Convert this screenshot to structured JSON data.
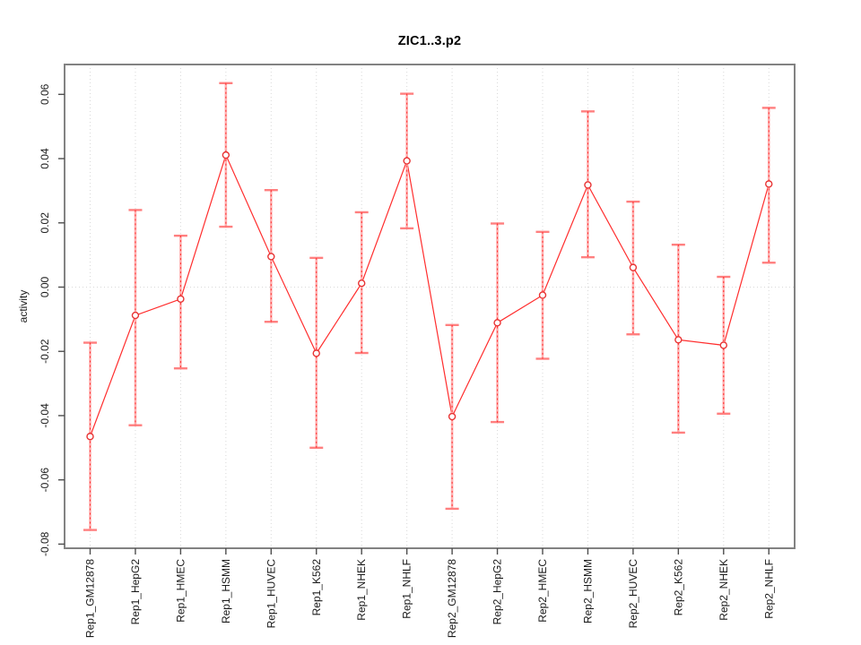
{
  "chart_data": {
    "type": "line",
    "title": "ZIC1..3.p2",
    "xlabel": "",
    "ylabel": "activity",
    "categories": [
      "Rep1_GM12878",
      "Rep1_HepG2",
      "Rep1_HMEC",
      "Rep1_HSMM",
      "Rep1_HUVEC",
      "Rep1_K562",
      "Rep1_NHEK",
      "Rep1_NHLF",
      "Rep2_GM12878",
      "Rep2_HepG2",
      "Rep2_HMEC",
      "Rep2_HSMM",
      "Rep2_HUVEC",
      "Rep2_K562",
      "Rep2_NHEK",
      "Rep2_NHLF"
    ],
    "series": [
      {
        "name": "activity",
        "values": [
          -0.0465,
          -0.0088,
          -0.0037,
          0.0411,
          0.0095,
          -0.0206,
          0.0012,
          0.0393,
          -0.0403,
          -0.0111,
          -0.0025,
          0.0318,
          0.0061,
          -0.0164,
          -0.0181,
          0.0321
        ],
        "upper": [
          -0.0173,
          0.024,
          0.016,
          0.0635,
          0.0302,
          0.0091,
          0.0233,
          0.0602,
          -0.0118,
          0.0198,
          0.0172,
          0.0547,
          0.0266,
          0.0132,
          0.0032,
          0.0558
        ],
        "lower": [
          -0.0756,
          -0.043,
          -0.0253,
          0.0188,
          -0.0108,
          -0.05,
          -0.0205,
          0.0183,
          -0.069,
          -0.042,
          -0.0223,
          0.0093,
          -0.0147,
          -0.0453,
          -0.0394,
          0.0076
        ]
      }
    ],
    "yticks": [
      0.06,
      0.04,
      0.02,
      0.0,
      -0.02,
      -0.04,
      -0.06,
      -0.08
    ],
    "ytick_labels": [
      "0.06",
      "0.04",
      "0.02",
      "0.00",
      "-0.02",
      "-0.04",
      "-0.06",
      "-0.08"
    ],
    "ylim": [
      -0.0813,
      0.0693
    ],
    "grid": {
      "vertical": "dotted line at every category",
      "horizontal": "dotted line at 0.00 only"
    },
    "legend": "none",
    "point_marker": "open-circle",
    "error_bars": true,
    "colors": {
      "line": "#ff2d2d",
      "error_bar": "#ffb0b0",
      "error_bar_cap": "#ff7f7f",
      "error_bar_dash": "#ff2d2d",
      "point_fill": "#ffffff",
      "point_stroke": "#e83333",
      "frame": "#828282",
      "tick": "#4d4d4d",
      "grid": "#d8d8d8",
      "text": "#1a1a1a"
    }
  }
}
